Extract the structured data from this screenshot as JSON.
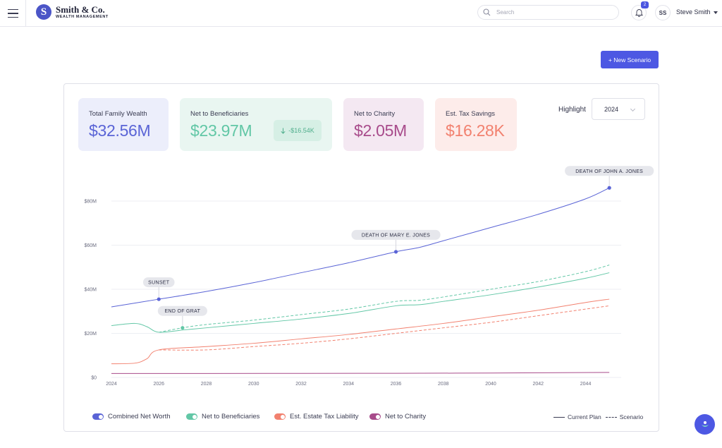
{
  "header": {
    "brand_initial": "S",
    "brand_name": "Smith & Co.",
    "brand_sub": "WEALTH MANAGEMENT",
    "search_placeholder": "Search",
    "notification_count": "2",
    "user_initials": "SS",
    "user_name": "Steve Smith"
  },
  "toolbar": {
    "new_scenario_label": "+ New Scenario"
  },
  "kpis": [
    {
      "label": "Total Family Wealth",
      "value": "$32.56M"
    },
    {
      "label": "Net to Beneficiaries",
      "value": "$23.97M",
      "delta": "-$16.54K"
    },
    {
      "label": "Net to Charity",
      "value": "$2.05M"
    },
    {
      "label": "Est. Tax Savings",
      "value": "$16.28K"
    }
  ],
  "highlight": {
    "label": "Highlight",
    "selected": "2024"
  },
  "colors": {
    "combined": "#5a64d6",
    "beneficiaries": "#62c7a6",
    "tax": "#f2816f",
    "charity": "#a84b8b"
  },
  "chart_data": {
    "type": "line",
    "x_ticks": [
      "2024",
      "2026",
      "2028",
      "2030",
      "2032",
      "2034",
      "2036",
      "2038",
      "2040",
      "2042",
      "2044"
    ],
    "y_ticks": [
      "$0",
      "$20M",
      "$40M",
      "$60M",
      "$80M"
    ],
    "xlim": [
      2024,
      2045.5
    ],
    "ylim": [
      0,
      80
    ],
    "grid": true,
    "series": [
      {
        "name": "Combined Net Worth",
        "key": "combined",
        "style": "solid",
        "points": [
          [
            2024,
            32
          ],
          [
            2026,
            35.5
          ],
          [
            2028,
            39
          ],
          [
            2030,
            43
          ],
          [
            2032,
            47.5
          ],
          [
            2034,
            52
          ],
          [
            2036,
            57
          ],
          [
            2037,
            59
          ],
          [
            2038,
            62
          ],
          [
            2040,
            68
          ],
          [
            2042,
            74
          ],
          [
            2044,
            81
          ],
          [
            2045,
            86
          ]
        ]
      },
      {
        "name": "Net to Beneficiaries",
        "key": "beneficiaries",
        "style": "solid",
        "points": [
          [
            2024,
            23.5
          ],
          [
            2025,
            24.5
          ],
          [
            2025.5,
            23
          ],
          [
            2026,
            20.5
          ],
          [
            2027,
            21.5
          ],
          [
            2028,
            22.5
          ],
          [
            2030,
            24.5
          ],
          [
            2032,
            26.5
          ],
          [
            2034,
            29
          ],
          [
            2036,
            32.5
          ],
          [
            2037,
            33
          ],
          [
            2038,
            34.5
          ],
          [
            2040,
            37.5
          ],
          [
            2042,
            41
          ],
          [
            2044,
            45
          ],
          [
            2045,
            47.5
          ]
        ]
      },
      {
        "name": "Net to Beneficiaries",
        "key": "beneficiaries",
        "style": "dashed",
        "points": [
          [
            2026,
            20.5
          ],
          [
            2027,
            22.5
          ],
          [
            2028,
            24
          ],
          [
            2030,
            26
          ],
          [
            2032,
            28.5
          ],
          [
            2034,
            31
          ],
          [
            2036,
            34.5
          ],
          [
            2037,
            35
          ],
          [
            2038,
            36.5
          ],
          [
            2040,
            40
          ],
          [
            2042,
            43.5
          ],
          [
            2044,
            48
          ],
          [
            2045,
            51
          ]
        ]
      },
      {
        "name": "Est. Estate Tax Liability",
        "key": "tax",
        "style": "solid",
        "points": [
          [
            2024,
            6.2
          ],
          [
            2025,
            6.5
          ],
          [
            2025.5,
            8.5
          ],
          [
            2026,
            12.5
          ],
          [
            2028,
            14
          ],
          [
            2030,
            15.5
          ],
          [
            2032,
            17.5
          ],
          [
            2034,
            19.5
          ],
          [
            2036,
            22
          ],
          [
            2038,
            24.5
          ],
          [
            2040,
            27.5
          ],
          [
            2042,
            30.5
          ],
          [
            2044,
            34
          ],
          [
            2045,
            35.5
          ]
        ]
      },
      {
        "name": "Est. Estate Tax Liability",
        "key": "tax",
        "style": "dashed",
        "points": [
          [
            2026,
            12.5
          ],
          [
            2028,
            12.5
          ],
          [
            2030,
            14
          ],
          [
            2032,
            15.5
          ],
          [
            2034,
            17.5
          ],
          [
            2036,
            20
          ],
          [
            2038,
            22.5
          ],
          [
            2040,
            25
          ],
          [
            2042,
            28
          ],
          [
            2044,
            31
          ],
          [
            2045,
            32.5
          ]
        ]
      },
      {
        "name": "Net to Charity",
        "key": "charity",
        "style": "solid",
        "points": [
          [
            2024,
            1.8
          ],
          [
            2028,
            1.8
          ],
          [
            2036,
            1.9
          ],
          [
            2040,
            2
          ],
          [
            2045,
            2.3
          ]
        ]
      }
    ],
    "annotations": [
      {
        "label": "SUNSET",
        "x": 2026,
        "y": 35.5,
        "key": "combined"
      },
      {
        "label": "END OF GRAT",
        "x": 2027,
        "y": 22.5,
        "key": "beneficiaries"
      },
      {
        "label": "DEATH OF MARY E. JONES",
        "x": 2036,
        "y": 57,
        "key": "combined"
      },
      {
        "label": "DEATH OF JOHN A. JONES",
        "x": 2045,
        "y": 86,
        "key": "combined"
      }
    ]
  },
  "legend": [
    {
      "label": "Combined Net Worth",
      "key": "combined"
    },
    {
      "label": "Net to Beneficiaries",
      "key": "beneficiaries"
    },
    {
      "label": "Est. Estate Tax Liability",
      "key": "tax"
    },
    {
      "label": "Net to Charity",
      "key": "charity"
    }
  ],
  "line_styles": {
    "current_label": "Current Plan",
    "scenario_label": "Scenario"
  }
}
